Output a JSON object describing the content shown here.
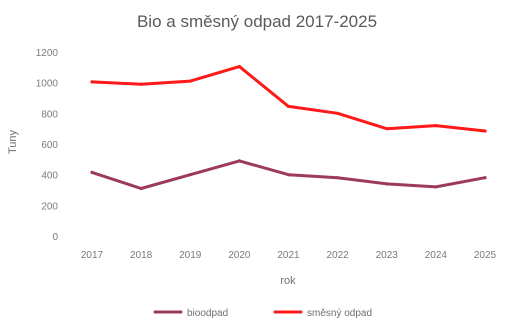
{
  "chart_data": {
    "type": "line",
    "title": "Bio a směsný odpad 2017-2025",
    "xlabel": "rok",
    "ylabel": "Tuny",
    "categories": [
      "2017",
      "2018",
      "2019",
      "2020",
      "2021",
      "2022",
      "2023",
      "2024",
      "2025"
    ],
    "y_ticks": [
      "0",
      "200",
      "400",
      "600",
      "800",
      "1000",
      "1200"
    ],
    "ylim": [
      0,
      1200
    ],
    "grid": false,
    "legend_position": "bottom",
    "series": [
      {
        "name": "bioodpad",
        "color": "#9b3b57",
        "values": [
          415,
          310,
          400,
          490,
          400,
          380,
          340,
          320,
          380
        ]
      },
      {
        "name": "směsný odpad",
        "color": "#ff1a1a",
        "values": [
          1005,
          990,
          1010,
          1105,
          845,
          800,
          700,
          720,
          685
        ]
      }
    ]
  }
}
